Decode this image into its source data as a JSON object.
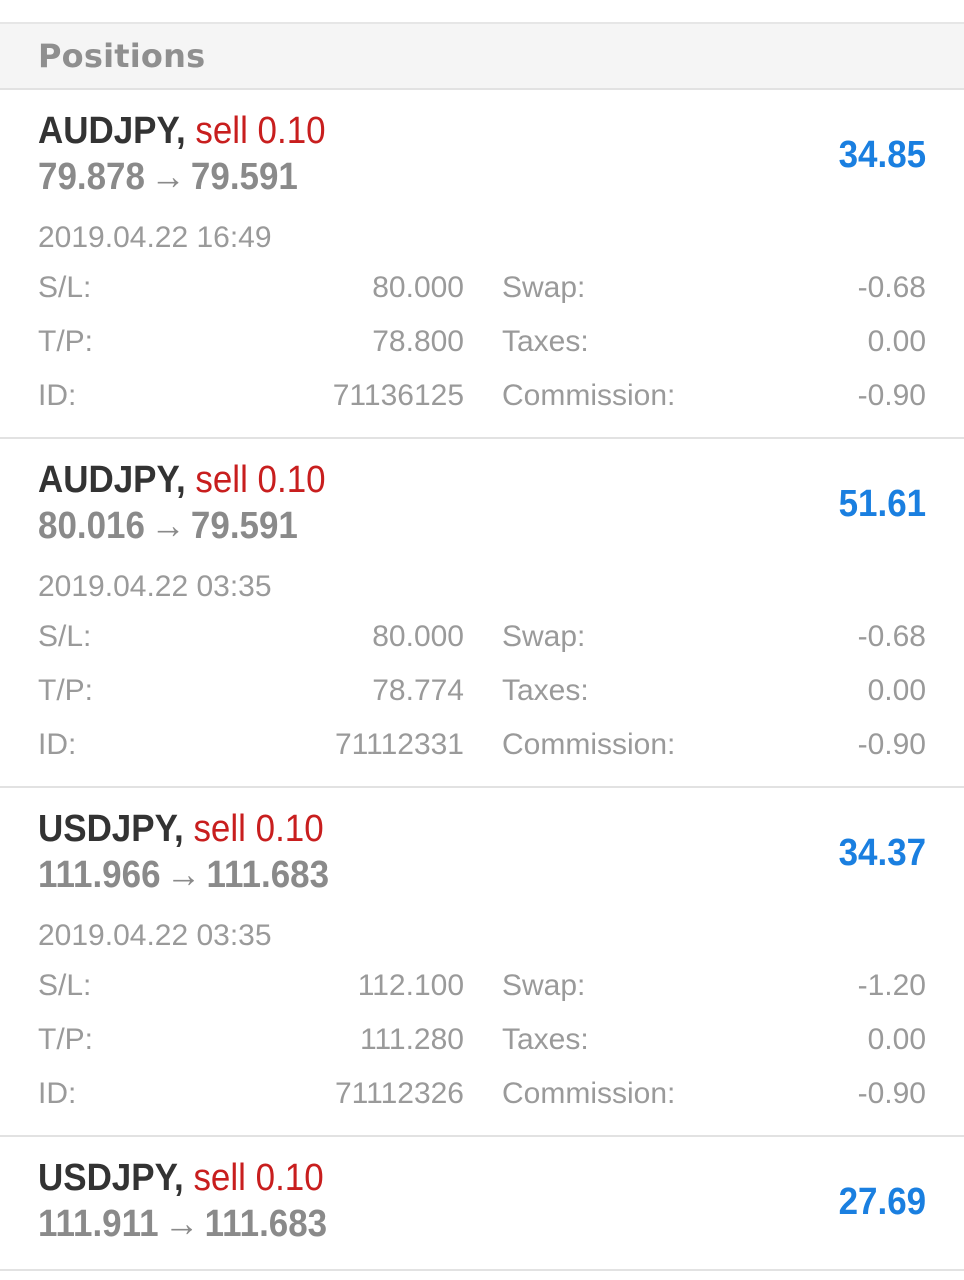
{
  "header": {
    "title": "Positions"
  },
  "labels": {
    "sl": "S/L:",
    "tp": "T/P:",
    "id": "ID:",
    "swap": "Swap:",
    "taxes": "Taxes:",
    "commission": "Commission:",
    "arrow": "→"
  },
  "positions": [
    {
      "symbol": "AUDJPY,",
      "side": "sell 0.10",
      "open_price": "79.878",
      "current_price": "79.591",
      "profit": "34.85",
      "time": "2019.04.22 16:49",
      "sl": "80.000",
      "tp": "78.800",
      "id": "71136125",
      "swap": "-0.68",
      "taxes": "0.00",
      "commission": "-0.90"
    },
    {
      "symbol": "AUDJPY,",
      "side": "sell 0.10",
      "open_price": "80.016",
      "current_price": "79.591",
      "profit": "51.61",
      "time": "2019.04.22 03:35",
      "sl": "80.000",
      "tp": "78.774",
      "id": "71112331",
      "swap": "-0.68",
      "taxes": "0.00",
      "commission": "-0.90"
    },
    {
      "symbol": "USDJPY,",
      "side": "sell 0.10",
      "open_price": "111.966",
      "current_price": "111.683",
      "profit": "34.37",
      "time": "2019.04.22 03:35",
      "sl": "112.100",
      "tp": "111.280",
      "id": "71112326",
      "swap": "-1.20",
      "taxes": "0.00",
      "commission": "-0.90"
    },
    {
      "symbol": "USDJPY,",
      "side": "sell 0.10",
      "open_price": "111.911",
      "current_price": "111.683",
      "profit": "27.69"
    }
  ],
  "colors": {
    "sell": "#c81e1e",
    "profit": "#1a7fe0",
    "header_bg": "#f5f5f5"
  }
}
